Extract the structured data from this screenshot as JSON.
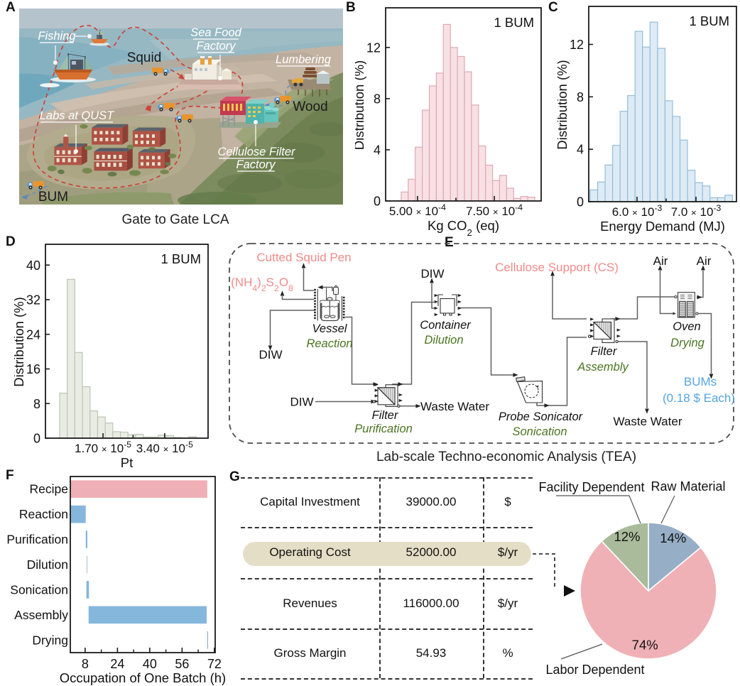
{
  "panel_labels": {
    "a": "A",
    "b": "B",
    "c": "C",
    "d": "D",
    "e": "E",
    "f": "F",
    "g": "G"
  },
  "panel_a": {
    "caption": "Gate to Gate LCA",
    "sites": {
      "fishing": "Fishing",
      "sea_food_factory_line1": "Sea Food",
      "sea_food_factory_line2": "Factory",
      "lumbering": "Lumbering",
      "labs": "Labs at QUST",
      "cellulose_line1": "Cellulose Filter",
      "cellulose_line2": "Factory"
    },
    "goods": {
      "squid": "Squid",
      "wood": "Wood",
      "bum": "BUM"
    }
  },
  "chart_data": [
    {
      "id": "histB",
      "type": "bar",
      "panel": "B",
      "annotation": "1 BUM",
      "ylabel": "Distribution (%)",
      "xlabel": [
        {
          "t": "Kg CO"
        },
        {
          "sub": "2"
        },
        {
          "t": " (eq)"
        }
      ],
      "values": [
        0.7,
        1.7,
        4.2,
        7.1,
        9.0,
        10.0,
        13.8,
        12.0,
        11.3,
        10.1,
        7.5,
        4.3,
        2.8,
        1.6,
        2.0,
        1.0,
        0.2,
        0.35,
        0.3
      ],
      "ylim": [
        0,
        15.1
      ],
      "yticks": [
        0,
        4,
        8,
        12
      ],
      "xticks": [
        {
          "frac": 0.205,
          "label": [
            {
              "t": "5.00 "
            },
            {
              "x": "×"
            },
            {
              "t": " 10"
            },
            {
              "sup": "-4"
            }
          ]
        },
        {
          "frac": 0.452
        },
        {
          "frac": 0.699,
          "label": [
            {
              "t": "7.50 "
            },
            {
              "x": "×"
            },
            {
              "t": " 10"
            },
            {
              "sup": "-4"
            }
          ]
        }
      ],
      "bar_start_frac": 0.1,
      "bar_width_frac": 0.0452,
      "bar_fill": "#f8e1e4",
      "bar_stroke": "#dfa8b2"
    },
    {
      "id": "histC",
      "type": "bar",
      "panel": "C",
      "annotation": "1 BUM",
      "ylabel": "Distribution (%)",
      "xlabel": [
        {
          "t": "Energy Demand (MJ)"
        }
      ],
      "values": [
        0.9,
        1.5,
        2.8,
        4.3,
        6.9,
        8.1,
        13.0,
        11.8,
        13.7,
        11.7,
        7.7,
        6.5,
        4.7,
        2.4,
        1.45,
        1.2,
        0.3,
        0.3,
        0.5
      ],
      "ylim": [
        0,
        14.9
      ],
      "yticks": [
        0,
        4,
        8,
        12
      ],
      "xticks": [
        {
          "frac": 0.327,
          "label": [
            {
              "t": "6.0 "
            },
            {
              "x": "×"
            },
            {
              "t": " 10"
            },
            {
              "sup": "-3"
            }
          ]
        },
        {
          "frac": 0.524
        },
        {
          "frac": 0.726,
          "label": [
            {
              "t": "7.0 "
            },
            {
              "x": "×"
            },
            {
              "t": " 10"
            },
            {
              "sup": "-3"
            }
          ]
        }
      ],
      "bar_start_frac": 0.0096,
      "bar_width_frac": 0.0507,
      "bar_fill": "#deebf5",
      "bar_stroke": "#92bddb"
    },
    {
      "id": "histD",
      "type": "bar",
      "panel": "D",
      "annotation": "1 BUM",
      "ylabel": "Distribution (%)",
      "xlabel": [
        {
          "t": "Pt"
        }
      ],
      "values": [
        10.4,
        36.7,
        19.8,
        11.9,
        6.3,
        4.9,
        3.5,
        1.5,
        1.4,
        0.8,
        0.9,
        0.3,
        0.25,
        0.7,
        0.6,
        0.15,
        0.05,
        0.35
      ],
      "ylim": [
        0,
        44.8
      ],
      "yticks": [
        0,
        8,
        16,
        24,
        32,
        40
      ],
      "xticks": [
        {
          "frac": 0.354,
          "label": [
            {
              "t": "1.70 "
            },
            {
              "x": "×"
            },
            {
              "t": " 10"
            },
            {
              "sup": "-5"
            }
          ]
        },
        {
          "frac": 0.539
        },
        {
          "frac": 0.733,
          "label": [
            {
              "t": "3.40 "
            },
            {
              "x": "×"
            },
            {
              "t": " 10"
            },
            {
              "sup": "-5"
            }
          ]
        }
      ],
      "bar_start_frac": 0.0873,
      "bar_width_frac": 0.0467,
      "bar_fill": "#e9ece4",
      "bar_stroke": "#bcc6b4"
    },
    {
      "id": "ganttF",
      "type": "bar",
      "panel": "F",
      "orientation": "horizontal",
      "xlabel": "Occupation of One Batch (h)",
      "xlim": [
        0.65,
        72.4
      ],
      "xticks_major": [
        8,
        24,
        40,
        56,
        72
      ],
      "xticks_minor": [
        16,
        32,
        48,
        64
      ],
      "rows": [
        {
          "label": "Recipe",
          "start": 0,
          "end": 68.5,
          "color": "#eeafb6"
        },
        {
          "label": "Reaction",
          "start": 0,
          "end": 8.3,
          "color": "#85b7dd"
        },
        {
          "label": "Purification",
          "start": 8.3,
          "end": 9.1,
          "color": "#85b7dd"
        },
        {
          "label": "Dilution",
          "start": 8.75,
          "end": 9.05,
          "color": "#9fb6c6"
        },
        {
          "label": "Sonication",
          "start": 8.6,
          "end": 9.9,
          "color": "#85b7dd"
        },
        {
          "label": "Assembly",
          "start": 9.7,
          "end": 68.2,
          "color": "#85b7dd"
        },
        {
          "label": "Drying",
          "start": 68.4,
          "end": 68.9,
          "color": "#9fb6c6"
        }
      ]
    },
    {
      "id": "pieG",
      "type": "pie",
      "panel": "G",
      "slices": [
        {
          "label": "Raw Material",
          "pct": 14,
          "color": "#96aec6",
          "label_r": 0.85
        },
        {
          "label": "Labor Dependent",
          "pct": 74,
          "color": "#efb1b6",
          "label_r": 0.8
        },
        {
          "label": "Facility Dependent",
          "pct": 12,
          "color": "#a9bb9b",
          "label_r": 0.85
        }
      ]
    }
  ],
  "panel_g": {
    "rows": [
      {
        "label": "Capital Investment",
        "value": "39000.00",
        "unit": "$",
        "highlight": false
      },
      {
        "label": "Operating Cost",
        "value": "52000.00",
        "unit": "$/yr",
        "highlight": true
      },
      {
        "label": "Revenues",
        "value": "116000.00",
        "unit": "$/yr",
        "highlight": false
      },
      {
        "label": "Gross Margin",
        "value": "54.93",
        "unit": "%",
        "highlight": false
      }
    ]
  },
  "panel_e": {
    "caption": "Lab-scale Techno-economic Analysis (TEA)",
    "feeds": {
      "squid_pen": "Cutted Squid Pen",
      "aps": [
        {
          "t": "(NH"
        },
        {
          "sub": "4"
        },
        {
          "t": ")"
        },
        {
          "sub": "2"
        },
        {
          "t": "S"
        },
        {
          "sub": "2"
        },
        {
          "t": "O"
        },
        {
          "sub": "8"
        }
      ],
      "cs": "Cellulose Support (CS)",
      "diw": "DIW",
      "air": "Air",
      "waste_water": "Waste Water"
    },
    "units": {
      "vessel": {
        "name": "Vessel",
        "step": "Reaction"
      },
      "container": {
        "name": "Container",
        "step": "Dilution"
      },
      "filter1": {
        "name": "Filter",
        "step": "Purification"
      },
      "sonicator": {
        "name": "Probe Sonicator",
        "step": "Sonication"
      },
      "filter2": {
        "name": "Filter",
        "step": "Assembly"
      },
      "oven": {
        "name": "Oven",
        "step": "Drying"
      }
    },
    "product": {
      "line1": "BUMs",
      "line2": "(0.18 $ Each)"
    }
  },
  "colors": {
    "feed_text": "#f08a8a",
    "step_text": "#4a7420",
    "product_text": "#55a4e0",
    "stream_line": "#555555",
    "red_dash": "#cc4438",
    "blue_dash": "#6b93bd"
  }
}
